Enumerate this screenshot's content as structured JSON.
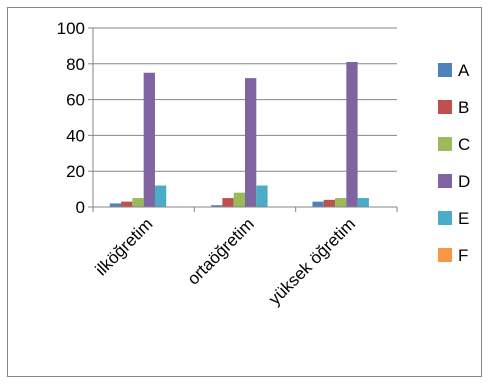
{
  "chart_data": {
    "type": "bar",
    "title": "",
    "xlabel": "",
    "ylabel": "",
    "ylim": [
      0,
      100
    ],
    "yticks": [
      0,
      20,
      40,
      60,
      80,
      100
    ],
    "grid": true,
    "legend_position": "right",
    "categories": [
      "ilköğretim",
      "ortaöğretim",
      "yüksek öğretim"
    ],
    "series": [
      {
        "name": "A",
        "color": "#4f81bd",
        "values": [
          2,
          1,
          3
        ]
      },
      {
        "name": "B",
        "color": "#c0504d",
        "values": [
          3,
          5,
          4
        ]
      },
      {
        "name": "C",
        "color": "#9bbb59",
        "values": [
          5,
          8,
          5
        ]
      },
      {
        "name": "D",
        "color": "#8064a2",
        "values": [
          75,
          72,
          81
        ]
      },
      {
        "name": "E",
        "color": "#4bacc6",
        "values": [
          12,
          12,
          5
        ]
      },
      {
        "name": "F",
        "color": "#f79646",
        "values": [
          0,
          0,
          0
        ]
      }
    ]
  }
}
